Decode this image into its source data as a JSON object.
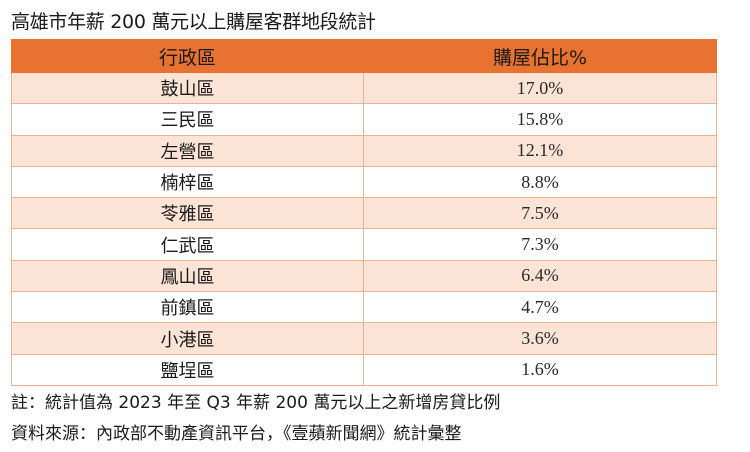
{
  "title": "高雄市年薪 200 萬元以上購屋客群地段統計",
  "table": {
    "headers": [
      "行政區",
      "購屋佔比%"
    ],
    "rows": [
      {
        "district": "鼓山區",
        "share": "17.0%"
      },
      {
        "district": "三民區",
        "share": "15.8%"
      },
      {
        "district": "左營區",
        "share": "12.1%"
      },
      {
        "district": "楠梓區",
        "share": "8.8%"
      },
      {
        "district": "苓雅區",
        "share": "7.5%"
      },
      {
        "district": "仁武區",
        "share": "7.3%"
      },
      {
        "district": "鳳山區",
        "share": "6.4%"
      },
      {
        "district": "前鎮區",
        "share": "4.7%"
      },
      {
        "district": "小港區",
        "share": "3.6%"
      },
      {
        "district": "鹽埕區",
        "share": "1.6%"
      }
    ]
  },
  "notes": {
    "note": "註：統計值為 2023 年至 Q3 年薪 200 萬元以上之新增房貸比例",
    "source": "資料來源：內政部不動產資訊平台，《壹蘋新聞網》統計彙整"
  },
  "colors": {
    "header_bg": "#e8722f",
    "odd_row_bg": "#fbe4d6",
    "even_row_bg": "#ffffff",
    "border": "#e9b396"
  },
  "chart_data": {
    "type": "table",
    "title": "高雄市年薪 200 萬元以上購屋客群地段統計",
    "columns": [
      "行政區",
      "購屋佔比%"
    ],
    "categories": [
      "鼓山區",
      "三民區",
      "左營區",
      "楠梓區",
      "苓雅區",
      "仁武區",
      "鳳山區",
      "前鎮區",
      "小港區",
      "鹽埕區"
    ],
    "values": [
      17.0,
      15.8,
      12.1,
      8.8,
      7.5,
      7.3,
      6.4,
      4.7,
      3.6,
      1.6
    ],
    "unit": "%"
  }
}
